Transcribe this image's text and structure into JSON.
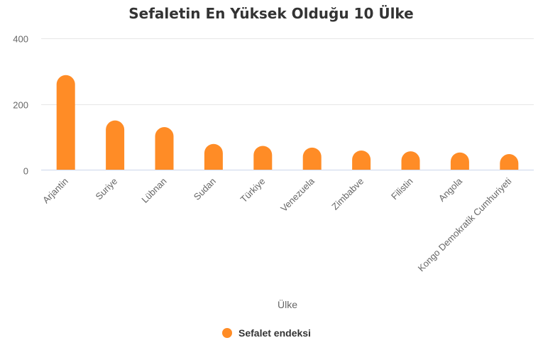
{
  "chart_data": {
    "type": "bar",
    "title": "Sefaletin En Yüksek Olduğu 10 Ülke",
    "xlabel": "Ülke",
    "ylabel": "",
    "ylim": [
      0,
      400
    ],
    "yticks": [
      "0",
      "200",
      "400"
    ],
    "grid": true,
    "legend_position": "bottom",
    "categories": [
      "Arjantin",
      "Suriye",
      "Lübnan",
      "Sudan",
      "Türkiye",
      "Venezuela",
      "Zimbabve",
      "Filistin",
      "Angola",
      "Kongo Demokratik Cumhuriyeti"
    ],
    "series": [
      {
        "name": "Sefalet endeksi",
        "color": "#ff8c26",
        "values": [
          288.3,
          150.6,
          130.4,
          79.3,
          73.4,
          68.2,
          59.4,
          56.8,
          53.4,
          48.4
        ]
      }
    ]
  }
}
